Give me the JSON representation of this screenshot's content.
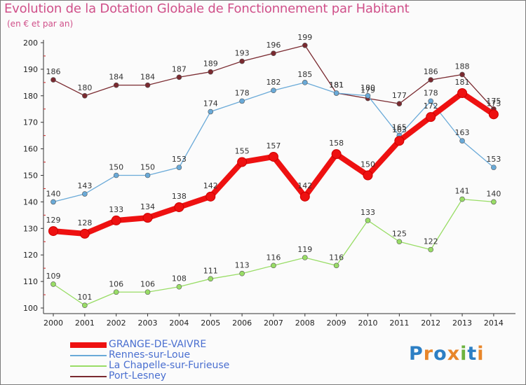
{
  "title": "Evolution de la Dotation Globale de Fonctionnement par Habitant",
  "subtitle": "(en € et par an)",
  "logo": {
    "letters": [
      "P",
      "r",
      "o",
      "x",
      "i",
      "t",
      "i"
    ],
    "colors": [
      "#2d7fc4",
      "#e8862a",
      "#2d7fc4",
      "#e8862a",
      "#6db33f",
      "#2d7fc4",
      "#e8862a"
    ]
  },
  "chart_data": {
    "type": "line",
    "x": [
      "2000",
      "2001",
      "2002",
      "2003",
      "2004",
      "2005",
      "2006",
      "2007",
      "2008",
      "2009",
      "2010",
      "2011",
      "2012",
      "2013",
      "2014"
    ],
    "ylim": [
      100,
      200
    ],
    "yticks": [
      "100",
      "110",
      "120",
      "130",
      "140",
      "150",
      "160",
      "170",
      "180",
      "190",
      "200"
    ],
    "grid": false,
    "legend_position": "bottom-left",
    "series": [
      {
        "name": "Port-Lesney",
        "color": "#7a2a30",
        "values": [
          186,
          180,
          184,
          184,
          187,
          189,
          193,
          196,
          199,
          181,
          179,
          177,
          186,
          188,
          175
        ]
      },
      {
        "name": "Rennes-sur-Loue",
        "color": "#6aaad8",
        "values": [
          140,
          143,
          150,
          150,
          153,
          174,
          178,
          182,
          185,
          181,
          180,
          165,
          178,
          163,
          153
        ]
      },
      {
        "name": "La Chapelle-sur-Furieuse",
        "color": "#99dd66",
        "values": [
          109,
          101,
          106,
          106,
          108,
          111,
          113,
          116,
          119,
          116,
          133,
          125,
          122,
          141,
          140
        ]
      },
      {
        "name": "GRANGE-DE-VAIVRE",
        "color": "#ee1111",
        "values": [
          129,
          128,
          133,
          134,
          138,
          142,
          155,
          157,
          142,
          158,
          150,
          163,
          172,
          181,
          173
        ]
      }
    ],
    "legend_order": [
      "GRANGE-DE-VAIVRE",
      "Rennes-sur-Loue",
      "La Chapelle-sur-Furieuse",
      "Port-Lesney"
    ]
  }
}
